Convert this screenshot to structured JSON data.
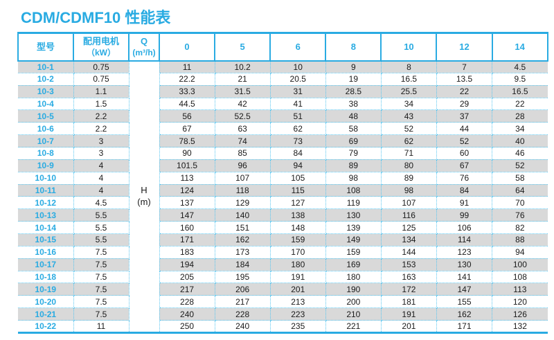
{
  "title": "CDM/CDMF10 性能表",
  "table": {
    "headers": {
      "model": "型号",
      "motor_line1": "配用电机",
      "motor_line2": "（kW）",
      "q_line1": "Q",
      "q_line2": "(m³/h)",
      "flows": [
        "0",
        "5",
        "6",
        "8",
        "10",
        "12",
        "14"
      ]
    },
    "h_col": {
      "line1": "H",
      "line2": "(m)"
    },
    "rows": [
      {
        "model": "10-1",
        "kw": "0.75",
        "h": [
          "11",
          "10.2",
          "10",
          "9",
          "8",
          "7",
          "4.5"
        ]
      },
      {
        "model": "10-2",
        "kw": "0.75",
        "h": [
          "22.2",
          "21",
          "20.5",
          "19",
          "16.5",
          "13.5",
          "9.5"
        ]
      },
      {
        "model": "10-3",
        "kw": "1.1",
        "h": [
          "33.3",
          "31.5",
          "31",
          "28.5",
          "25.5",
          "22",
          "16.5"
        ]
      },
      {
        "model": "10-4",
        "kw": "1.5",
        "h": [
          "44.5",
          "42",
          "41",
          "38",
          "34",
          "29",
          "22"
        ]
      },
      {
        "model": "10-5",
        "kw": "2.2",
        "h": [
          "56",
          "52.5",
          "51",
          "48",
          "43",
          "37",
          "28"
        ]
      },
      {
        "model": "10-6",
        "kw": "2.2",
        "h": [
          "67",
          "63",
          "62",
          "58",
          "52",
          "44",
          "34"
        ]
      },
      {
        "model": "10-7",
        "kw": "3",
        "h": [
          "78.5",
          "74",
          "73",
          "69",
          "62",
          "52",
          "40"
        ]
      },
      {
        "model": "10-8",
        "kw": "3",
        "h": [
          "90",
          "85",
          "84",
          "79",
          "71",
          "60",
          "46"
        ]
      },
      {
        "model": "10-9",
        "kw": "4",
        "h": [
          "101.5",
          "96",
          "94",
          "89",
          "80",
          "67",
          "52"
        ]
      },
      {
        "model": "10-10",
        "kw": "4",
        "h": [
          "113",
          "107",
          "105",
          "98",
          "89",
          "76",
          "58"
        ]
      },
      {
        "model": "10-11",
        "kw": "4",
        "h": [
          "124",
          "118",
          "115",
          "108",
          "98",
          "84",
          "64"
        ]
      },
      {
        "model": "10-12",
        "kw": "4.5",
        "h": [
          "137",
          "129",
          "127",
          "119",
          "107",
          "91",
          "70"
        ]
      },
      {
        "model": "10-13",
        "kw": "5.5",
        "h": [
          "147",
          "140",
          "138",
          "130",
          "116",
          "99",
          "76"
        ]
      },
      {
        "model": "10-14",
        "kw": "5.5",
        "h": [
          "160",
          "151",
          "148",
          "139",
          "125",
          "106",
          "82"
        ]
      },
      {
        "model": "10-15",
        "kw": "5.5",
        "h": [
          "171",
          "162",
          "159",
          "149",
          "134",
          "114",
          "88"
        ]
      },
      {
        "model": "10-16",
        "kw": "7.5",
        "h": [
          "183",
          "173",
          "170",
          "159",
          "144",
          "123",
          "94"
        ]
      },
      {
        "model": "10-17",
        "kw": "7.5",
        "h": [
          "194",
          "184",
          "180",
          "169",
          "153",
          "130",
          "100"
        ]
      },
      {
        "model": "10-18",
        "kw": "7.5",
        "h": [
          "205",
          "195",
          "191",
          "180",
          "163",
          "141",
          "108"
        ]
      },
      {
        "model": "10-19",
        "kw": "7.5",
        "h": [
          "217",
          "206",
          "201",
          "190",
          "172",
          "147",
          "113"
        ]
      },
      {
        "model": "10-20",
        "kw": "7.5",
        "h": [
          "228",
          "217",
          "213",
          "200",
          "181",
          "155",
          "120"
        ]
      },
      {
        "model": "10-21",
        "kw": "7.5",
        "h": [
          "240",
          "228",
          "223",
          "210",
          "191",
          "162",
          "126"
        ]
      },
      {
        "model": "10-22",
        "kw": "11",
        "h": [
          "250",
          "240",
          "235",
          "221",
          "201",
          "171",
          "132"
        ]
      }
    ]
  },
  "colors": {
    "accent": "#29abe2",
    "dotted_line": "#56c5f0",
    "stripe_gray": "#d9d9d9",
    "text": "#1a1a1a"
  }
}
